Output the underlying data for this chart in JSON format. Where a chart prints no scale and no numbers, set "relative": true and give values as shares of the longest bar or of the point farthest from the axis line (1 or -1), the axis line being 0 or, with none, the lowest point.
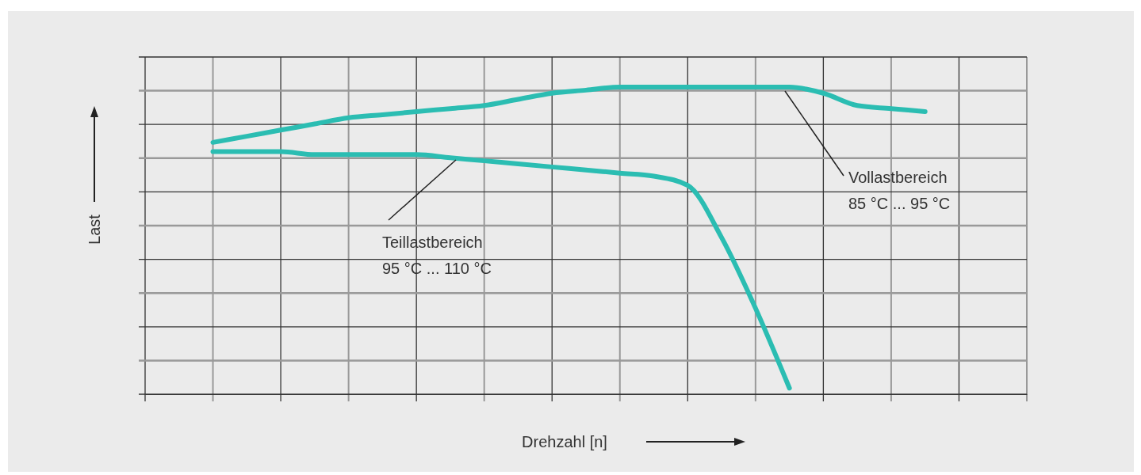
{
  "chart_data": {
    "type": "line",
    "relative": true,
    "xlabel": "Drehzahl [n]",
    "ylabel": "Last",
    "grid": true,
    "line_style": "solid",
    "categories": [
      null,
      null,
      null,
      null,
      null,
      null,
      null,
      null,
      null,
      null,
      null,
      null,
      null,
      null,
      null,
      null,
      null,
      null,
      null,
      null,
      null,
      null,
      null,
      null,
      null,
      null,
      null
    ],
    "series": [
      {
        "color": "#2bbdb2",
        "values": [
          null,
          null,
          0.82,
          0.84,
          0.86,
          0.88,
          0.9,
          0.91,
          0.92,
          0.93,
          0.94,
          0.96,
          0.98,
          0.99,
          1,
          1,
          1,
          1,
          1,
          1,
          0.98,
          0.94,
          0.93,
          0.92,
          null,
          null,
          null
        ]
      },
      {
        "color": "#2bbdb2",
        "values": [
          null,
          null,
          0.79,
          0.79,
          0.79,
          0.78,
          0.78,
          0.78,
          0.78,
          0.77,
          0.76,
          0.75,
          0.74,
          0.73,
          0.72,
          0.71,
          0.68,
          0.51,
          0.28,
          0.02,
          null,
          null,
          null,
          null,
          null,
          null,
          null
        ]
      }
    ],
    "annotations": [
      "Teillastbereich\n95 °C ... 110 °C",
      "Vollastbereich\n85 °C ... 95 °C"
    ]
  }
}
